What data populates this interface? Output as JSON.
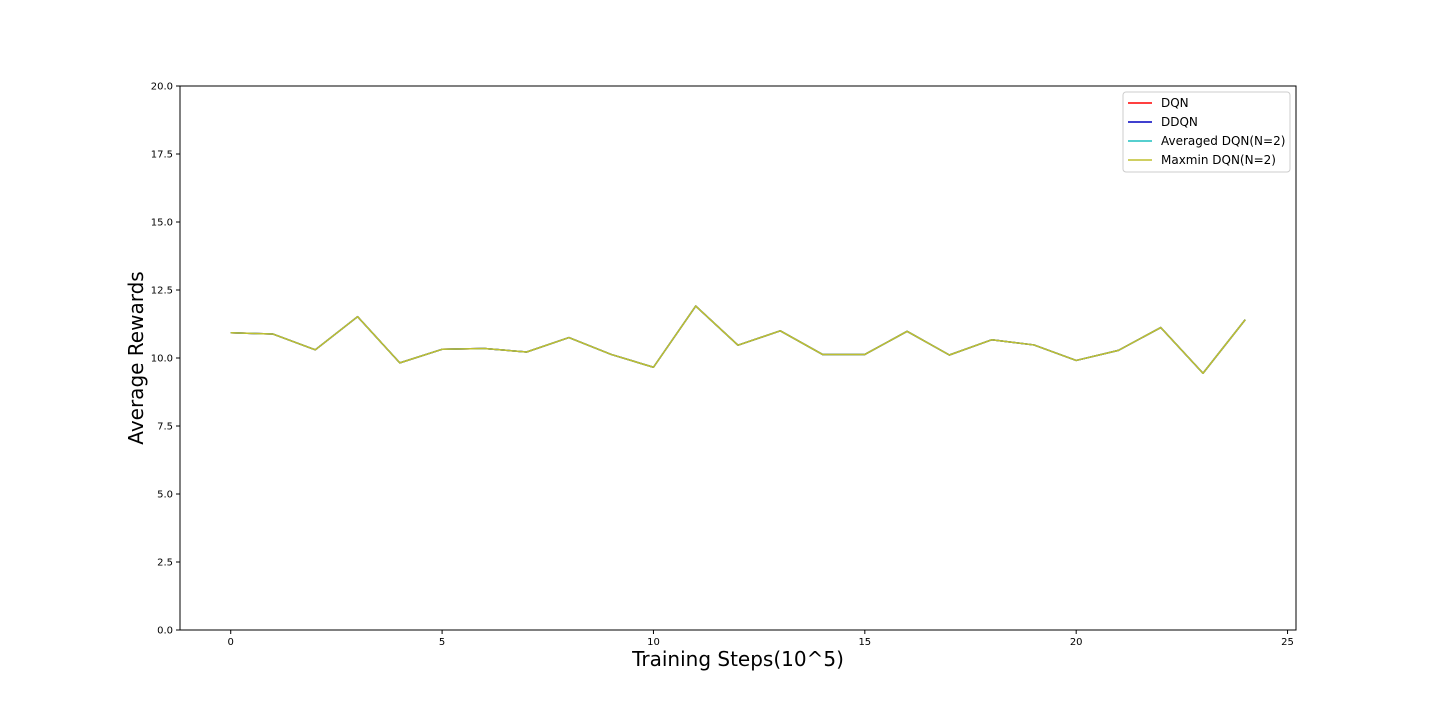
{
  "chart_data": {
    "type": "line",
    "title": "",
    "xlabel": "Training Steps(10^5)",
    "ylabel": "Average Rewards",
    "xlim": [
      -1.2,
      25.2
    ],
    "ylim": [
      0,
      20
    ],
    "xticks": [
      0,
      5,
      10,
      15,
      20,
      25
    ],
    "yticks": [
      0.0,
      2.5,
      5.0,
      7.5,
      10.0,
      12.5,
      15.0,
      17.5,
      20.0
    ],
    "ytick_labels": [
      "0.0",
      "2.5",
      "5.0",
      "7.5",
      "10.0",
      "12.5",
      "15.0",
      "17.5",
      "20.0"
    ],
    "grid": false,
    "legend_position": "top-right",
    "x": [
      0,
      1,
      2,
      3,
      4,
      5,
      6,
      7,
      8,
      9,
      10,
      11,
      12,
      13,
      14,
      15,
      16,
      17,
      18,
      19,
      20,
      21,
      22,
      23,
      24
    ],
    "series": [
      {
        "name": "DQN",
        "color": "#ff0000",
        "values": [
          10.93,
          10.88,
          10.3,
          11.52,
          9.82,
          10.32,
          10.35,
          10.22,
          10.75,
          10.13,
          9.66,
          11.91,
          10.47,
          11.0,
          10.13,
          10.13,
          10.98,
          10.11,
          10.67,
          10.48,
          9.91,
          10.28,
          11.12,
          9.44,
          11.41
        ]
      },
      {
        "name": "DDQN",
        "color": "#0000bf",
        "values": [
          10.93,
          10.88,
          10.3,
          11.52,
          9.82,
          10.32,
          10.35,
          10.22,
          10.75,
          10.13,
          9.66,
          11.91,
          10.47,
          11.0,
          10.13,
          10.13,
          10.98,
          10.11,
          10.67,
          10.48,
          9.91,
          10.28,
          11.12,
          9.44,
          11.41
        ]
      },
      {
        "name": "Averaged DQN(N=2)",
        "color": "#1fbfbf",
        "values": [
          10.93,
          10.88,
          10.3,
          11.52,
          9.82,
          10.32,
          10.35,
          10.22,
          10.75,
          10.13,
          9.66,
          11.91,
          10.47,
          11.0,
          10.13,
          10.13,
          10.98,
          10.11,
          10.67,
          10.48,
          9.91,
          10.28,
          11.12,
          9.44,
          11.41
        ]
      },
      {
        "name": "Maxmin DQN(N=2)",
        "color": "#bfbf2f",
        "values": [
          10.93,
          10.88,
          10.3,
          11.52,
          9.82,
          10.32,
          10.35,
          10.22,
          10.75,
          10.13,
          9.66,
          11.91,
          10.47,
          11.0,
          10.13,
          10.13,
          10.98,
          10.11,
          10.67,
          10.48,
          9.91,
          10.28,
          11.12,
          9.44,
          11.41
        ]
      }
    ]
  }
}
